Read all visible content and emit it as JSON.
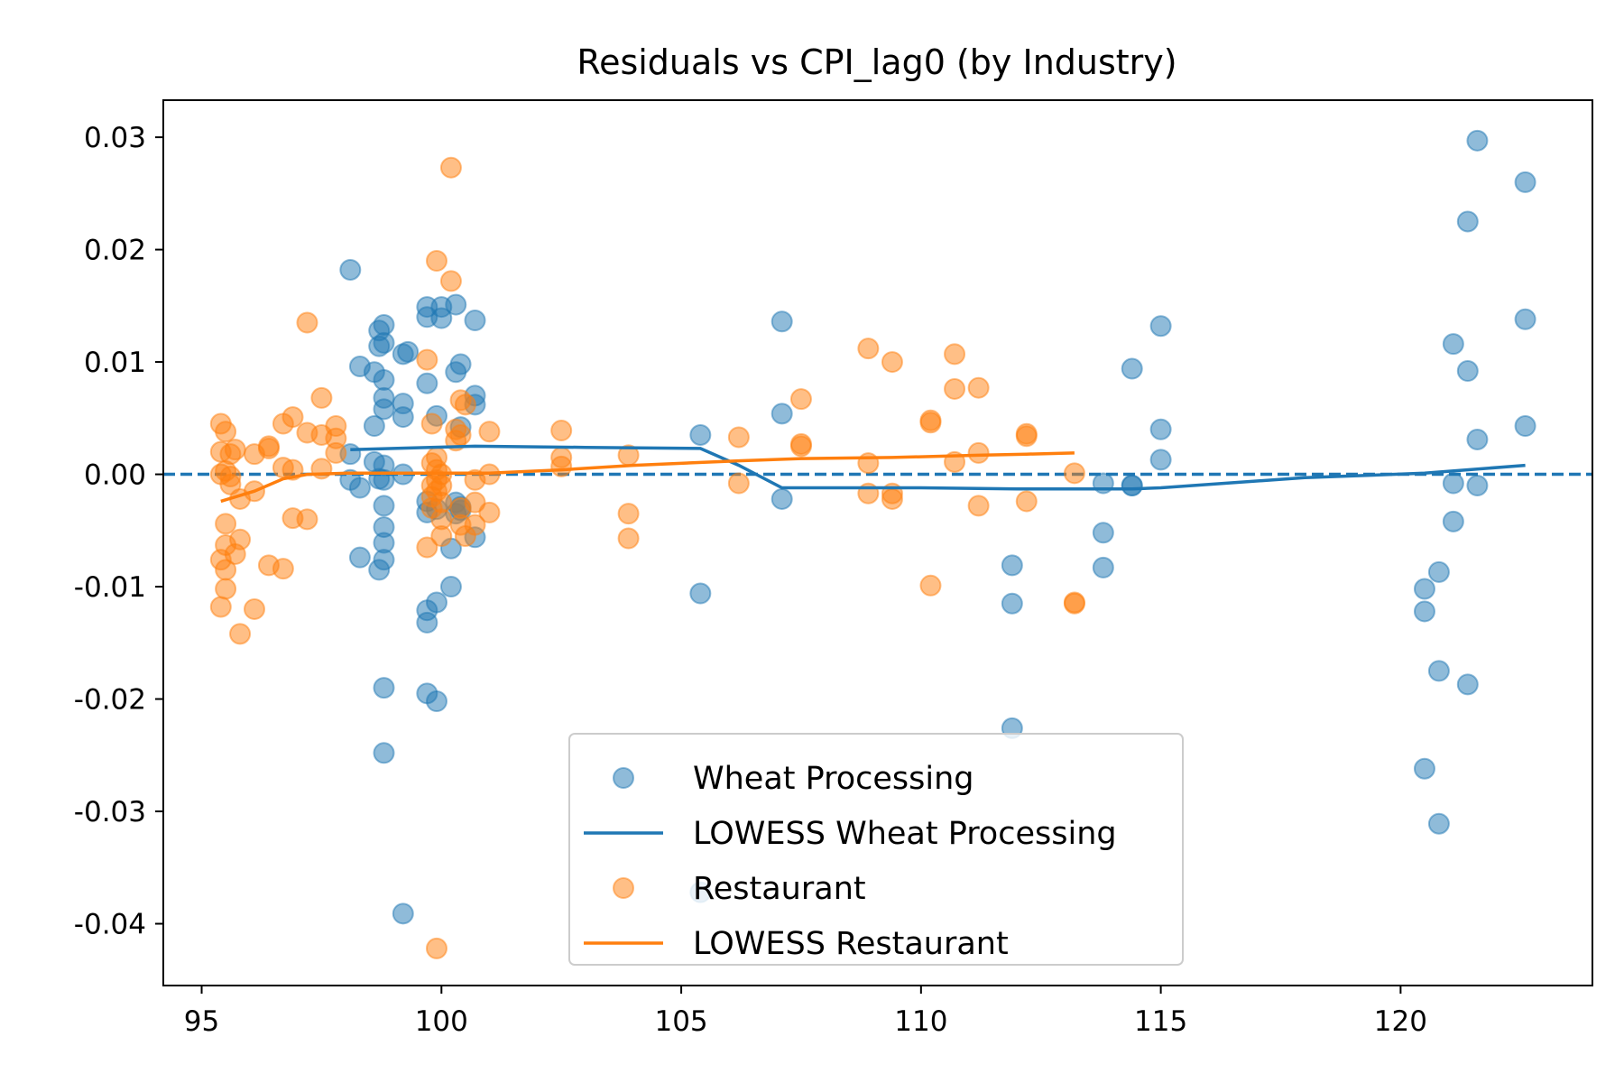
{
  "chart_data": {
    "type": "scatter",
    "title": "Residuals vs CPI_lag0 (by Industry)",
    "xlabel": "",
    "ylabel": "",
    "xlim": [
      94.2,
      124.0
    ],
    "ylim": [
      -0.0455,
      0.0333
    ],
    "xticks": [
      95,
      100,
      105,
      110,
      115,
      120
    ],
    "xtick_labels": [
      "95",
      "100",
      "105",
      "110",
      "115",
      "120"
    ],
    "yticks": [
      0.03,
      0.02,
      0.01,
      0.0,
      -0.01,
      -0.02,
      -0.03,
      -0.04
    ],
    "ytick_labels": [
      "0.03",
      "0.02",
      "0.01",
      "0.00",
      "-0.01",
      "-0.02",
      "-0.03",
      "-0.04"
    ],
    "reference_line": {
      "y": 0.0,
      "style": "dashed",
      "color": "#1f77b4"
    },
    "legend_position": "bottom-center",
    "grid": false,
    "series": [
      {
        "name": "Wheat Processing",
        "kind": "scatter",
        "color": "#1f77b4",
        "points": [
          [
            98.1,
            0.0182
          ],
          [
            98.1,
            0.0018
          ],
          [
            98.1,
            -0.0005
          ],
          [
            98.3,
            0.0096
          ],
          [
            98.3,
            -0.0012
          ],
          [
            98.3,
            -0.0074
          ],
          [
            98.6,
            0.0091
          ],
          [
            98.6,
            0.0043
          ],
          [
            98.6,
            0.0011
          ],
          [
            98.7,
            0.0128
          ],
          [
            98.7,
            0.0114
          ],
          [
            98.7,
            -0.0004
          ],
          [
            98.7,
            -0.0085
          ],
          [
            98.8,
            0.0133
          ],
          [
            98.8,
            0.0117
          ],
          [
            98.8,
            0.0084
          ],
          [
            98.8,
            0.0068
          ],
          [
            98.8,
            0.0058
          ],
          [
            98.8,
            0.0008
          ],
          [
            98.8,
            -0.0005
          ],
          [
            98.8,
            -0.0028
          ],
          [
            98.8,
            -0.0047
          ],
          [
            98.8,
            -0.0061
          ],
          [
            98.8,
            -0.0076
          ],
          [
            98.8,
            -0.019
          ],
          [
            98.8,
            -0.0248
          ],
          [
            99.2,
            0.0107
          ],
          [
            99.2,
            0.0063
          ],
          [
            99.2,
            0.0051
          ],
          [
            99.2,
            0.0
          ],
          [
            99.2,
            -0.0391
          ],
          [
            99.3,
            0.0109
          ],
          [
            99.7,
            0.0149
          ],
          [
            99.7,
            0.014
          ],
          [
            99.7,
            0.0081
          ],
          [
            99.7,
            -0.0024
          ],
          [
            99.7,
            -0.0034
          ],
          [
            99.7,
            -0.0121
          ],
          [
            99.7,
            -0.0132
          ],
          [
            99.7,
            -0.0195
          ],
          [
            99.9,
            0.0052
          ],
          [
            99.9,
            -0.0031
          ],
          [
            99.9,
            -0.0114
          ],
          [
            99.9,
            -0.0202
          ],
          [
            100.0,
            0.0149
          ],
          [
            100.0,
            0.0139
          ],
          [
            100.2,
            -0.01
          ],
          [
            100.2,
            -0.0066
          ],
          [
            100.3,
            0.0151
          ],
          [
            100.3,
            0.0091
          ],
          [
            100.3,
            -0.0025
          ],
          [
            100.3,
            -0.0035
          ],
          [
            100.4,
            0.0098
          ],
          [
            100.4,
            0.0042
          ],
          [
            100.4,
            -0.0029
          ],
          [
            100.4,
            -0.0032
          ],
          [
            100.7,
            0.0137
          ],
          [
            100.7,
            0.007
          ],
          [
            100.7,
            0.0062
          ],
          [
            100.7,
            -0.0056
          ],
          [
            105.4,
            0.0035
          ],
          [
            105.4,
            -0.0106
          ],
          [
            105.4,
            -0.0372
          ],
          [
            107.1,
            0.0136
          ],
          [
            107.1,
            0.0054
          ],
          [
            107.1,
            -0.0022
          ],
          [
            111.9,
            -0.0081
          ],
          [
            111.9,
            -0.0115
          ],
          [
            111.9,
            -0.0226
          ],
          [
            113.8,
            -0.0008
          ],
          [
            113.8,
            -0.0052
          ],
          [
            113.8,
            -0.0083
          ],
          [
            114.4,
            0.0094
          ],
          [
            114.4,
            -0.001
          ],
          [
            114.4,
            -0.001
          ],
          [
            115.0,
            0.0132
          ],
          [
            115.0,
            0.004
          ],
          [
            115.0,
            0.0013
          ],
          [
            120.5,
            -0.0102
          ],
          [
            120.5,
            -0.0122
          ],
          [
            120.5,
            -0.0262
          ],
          [
            120.8,
            -0.0087
          ],
          [
            120.8,
            -0.0175
          ],
          [
            120.8,
            -0.0311
          ],
          [
            121.1,
            0.0116
          ],
          [
            121.1,
            -0.0008
          ],
          [
            121.1,
            -0.0042
          ],
          [
            121.4,
            0.0225
          ],
          [
            121.4,
            0.0092
          ],
          [
            121.4,
            -0.0187
          ],
          [
            121.6,
            0.0297
          ],
          [
            121.6,
            0.0031
          ],
          [
            121.6,
            -0.001
          ],
          [
            122.6,
            0.026
          ],
          [
            122.6,
            0.0138
          ],
          [
            122.6,
            0.0043
          ]
        ]
      },
      {
        "name": "LOWESS Wheat Processing",
        "kind": "line",
        "color": "#1f77b4",
        "points": [
          [
            98.1,
            0.0022
          ],
          [
            99.0,
            0.0023
          ],
          [
            100.7,
            0.0025
          ],
          [
            103.0,
            0.0024
          ],
          [
            105.4,
            0.0023
          ],
          [
            106.2,
            0.0008
          ],
          [
            107.1,
            -0.0012
          ],
          [
            110.0,
            -0.0012
          ],
          [
            112.0,
            -0.0013
          ],
          [
            114.4,
            -0.0013
          ],
          [
            115.0,
            -0.0012
          ],
          [
            118.0,
            -0.0003
          ],
          [
            120.5,
            0.0001
          ],
          [
            122.6,
            0.0008
          ]
        ]
      },
      {
        "name": "Restaurant",
        "kind": "scatter",
        "color": "#ff7f0e",
        "points": [
          [
            95.4,
            0.0045
          ],
          [
            95.4,
            0.002
          ],
          [
            95.4,
            0.0
          ],
          [
            95.4,
            -0.0076
          ],
          [
            95.4,
            -0.0118
          ],
          [
            95.5,
            0.0038
          ],
          [
            95.5,
            0.0003
          ],
          [
            95.5,
            -0.0044
          ],
          [
            95.5,
            -0.0063
          ],
          [
            95.5,
            -0.0085
          ],
          [
            95.5,
            -0.0102
          ],
          [
            95.6,
            0.0018
          ],
          [
            95.6,
            -0.0002
          ],
          [
            95.6,
            -0.0009
          ],
          [
            95.7,
            0.0022
          ],
          [
            95.7,
            -0.0071
          ],
          [
            95.8,
            -0.0022
          ],
          [
            95.8,
            -0.0058
          ],
          [
            95.8,
            -0.0142
          ],
          [
            96.1,
            0.0018
          ],
          [
            96.1,
            -0.0015
          ],
          [
            96.1,
            -0.012
          ],
          [
            96.4,
            0.0025
          ],
          [
            96.4,
            0.0023
          ],
          [
            96.4,
            -0.0081
          ],
          [
            96.7,
            0.0045
          ],
          [
            96.7,
            0.0006
          ],
          [
            96.7,
            -0.0084
          ],
          [
            96.9,
            0.0051
          ],
          [
            96.9,
            0.0004
          ],
          [
            96.9,
            -0.0039
          ],
          [
            97.2,
            0.0135
          ],
          [
            97.2,
            0.0037
          ],
          [
            97.2,
            -0.004
          ],
          [
            97.5,
            0.0068
          ],
          [
            97.5,
            0.0035
          ],
          [
            97.5,
            0.0005
          ],
          [
            97.8,
            0.0043
          ],
          [
            97.8,
            0.0032
          ],
          [
            97.8,
            0.0019
          ],
          [
            99.7,
            0.0102
          ],
          [
            99.7,
            -0.0065
          ],
          [
            99.8,
            0.0045
          ],
          [
            99.8,
            0.001
          ],
          [
            99.8,
            -0.001
          ],
          [
            99.8,
            -0.002
          ],
          [
            99.8,
            -0.003
          ],
          [
            99.9,
            0.019
          ],
          [
            99.9,
            0.0015
          ],
          [
            99.9,
            0.0004
          ],
          [
            99.9,
            -0.0005
          ],
          [
            99.9,
            -0.0015
          ],
          [
            99.9,
            -0.0422
          ],
          [
            100.0,
            0.0
          ],
          [
            100.0,
            -0.001
          ],
          [
            100.0,
            -0.0025
          ],
          [
            100.0,
            -0.004
          ],
          [
            100.0,
            -0.0055
          ],
          [
            100.2,
            0.0273
          ],
          [
            100.2,
            0.0172
          ],
          [
            100.3,
            0.004
          ],
          [
            100.3,
            0.003
          ],
          [
            100.4,
            0.0066
          ],
          [
            100.4,
            0.0035
          ],
          [
            100.4,
            -0.003
          ],
          [
            100.4,
            -0.0045
          ],
          [
            100.5,
            0.0062
          ],
          [
            100.5,
            -0.0055
          ],
          [
            100.7,
            -0.0005
          ],
          [
            100.7,
            -0.0025
          ],
          [
            100.7,
            -0.0045
          ],
          [
            101.0,
            0.0038
          ],
          [
            101.0,
            0.0
          ],
          [
            101.0,
            -0.0034
          ],
          [
            102.5,
            0.0039
          ],
          [
            102.5,
            0.0015
          ],
          [
            102.5,
            0.0007
          ],
          [
            103.9,
            0.0017
          ],
          [
            103.9,
            -0.0035
          ],
          [
            103.9,
            -0.0057
          ],
          [
            106.2,
            0.0033
          ],
          [
            106.2,
            -0.0008
          ],
          [
            107.5,
            0.0067
          ],
          [
            107.5,
            0.0027
          ],
          [
            107.5,
            0.0025
          ],
          [
            108.9,
            0.0112
          ],
          [
            108.9,
            0.001
          ],
          [
            108.9,
            -0.0017
          ],
          [
            109.4,
            0.01
          ],
          [
            109.4,
            -0.0017
          ],
          [
            109.4,
            -0.0022
          ],
          [
            110.2,
            0.0048
          ],
          [
            110.2,
            0.0046
          ],
          [
            110.2,
            -0.0099
          ],
          [
            110.7,
            0.0107
          ],
          [
            110.7,
            0.0076
          ],
          [
            110.7,
            0.0011
          ],
          [
            111.2,
            0.0077
          ],
          [
            111.2,
            0.0019
          ],
          [
            111.2,
            -0.0028
          ],
          [
            112.2,
            0.0036
          ],
          [
            112.2,
            0.0034
          ],
          [
            112.2,
            -0.0024
          ],
          [
            113.2,
            0.0001
          ],
          [
            113.2,
            -0.0114
          ],
          [
            113.2,
            -0.0115
          ]
        ]
      },
      {
        "name": "LOWESS Restaurant",
        "kind": "line",
        "color": "#ff7f0e",
        "points": [
          [
            95.4,
            -0.0024
          ],
          [
            96.1,
            -0.0015
          ],
          [
            96.7,
            -0.0004
          ],
          [
            97.2,
            0.0
          ],
          [
            98.0,
            0.0001
          ],
          [
            100.0,
            0.0001
          ],
          [
            101.0,
            0.0001
          ],
          [
            102.5,
            0.0004
          ],
          [
            104.0,
            0.0008
          ],
          [
            106.2,
            0.0012
          ],
          [
            107.5,
            0.0014
          ],
          [
            109.4,
            0.0015
          ],
          [
            111.2,
            0.0017
          ],
          [
            112.2,
            0.0018
          ],
          [
            113.2,
            0.0019
          ]
        ]
      }
    ],
    "legend_entries": [
      {
        "label": "Wheat Processing",
        "kind": "marker",
        "color": "#1f77b4"
      },
      {
        "label": "LOWESS Wheat Processing",
        "kind": "line",
        "color": "#1f77b4"
      },
      {
        "label": "Restaurant",
        "kind": "marker",
        "color": "#ff7f0e"
      },
      {
        "label": "LOWESS Restaurant",
        "kind": "line",
        "color": "#ff7f0e"
      }
    ]
  }
}
